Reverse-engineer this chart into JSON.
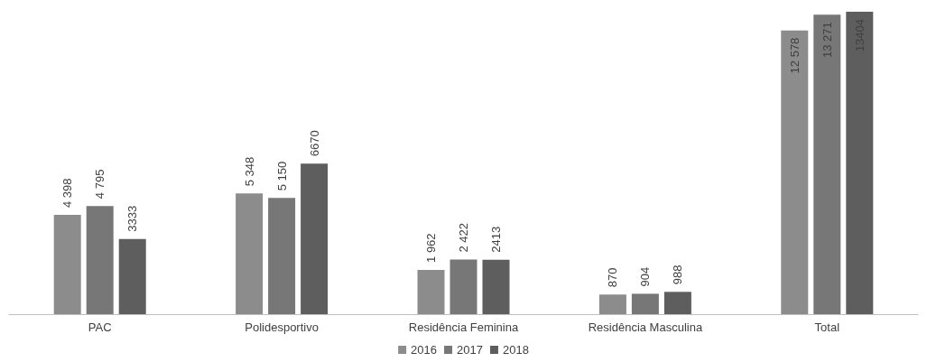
{
  "chart_data": {
    "type": "bar",
    "categories": [
      "PAC",
      "Polidesportivo",
      "Residência Feminina",
      "Residência Masculina",
      "Total"
    ],
    "series": [
      {
        "name": "2016",
        "color": "#8c8c8c",
        "values": [
          4398,
          5348,
          1962,
          870,
          12578
        ],
        "value_labels": [
          "4 398",
          "5 348",
          "1 962",
          "870",
          "12 578"
        ]
      },
      {
        "name": "2017",
        "color": "#777777",
        "values": [
          4795,
          5150,
          2422,
          904,
          13271
        ],
        "value_labels": [
          "4 795",
          "5 150",
          "2 422",
          "904",
          "13 271"
        ]
      },
      {
        "name": "2018",
        "color": "#5e5e5e",
        "values": [
          3333,
          6670,
          2413,
          988,
          13404
        ],
        "value_labels": [
          "3333",
          "6670",
          "2413",
          "988",
          "13404"
        ]
      }
    ],
    "legend": "bottom"
  }
}
